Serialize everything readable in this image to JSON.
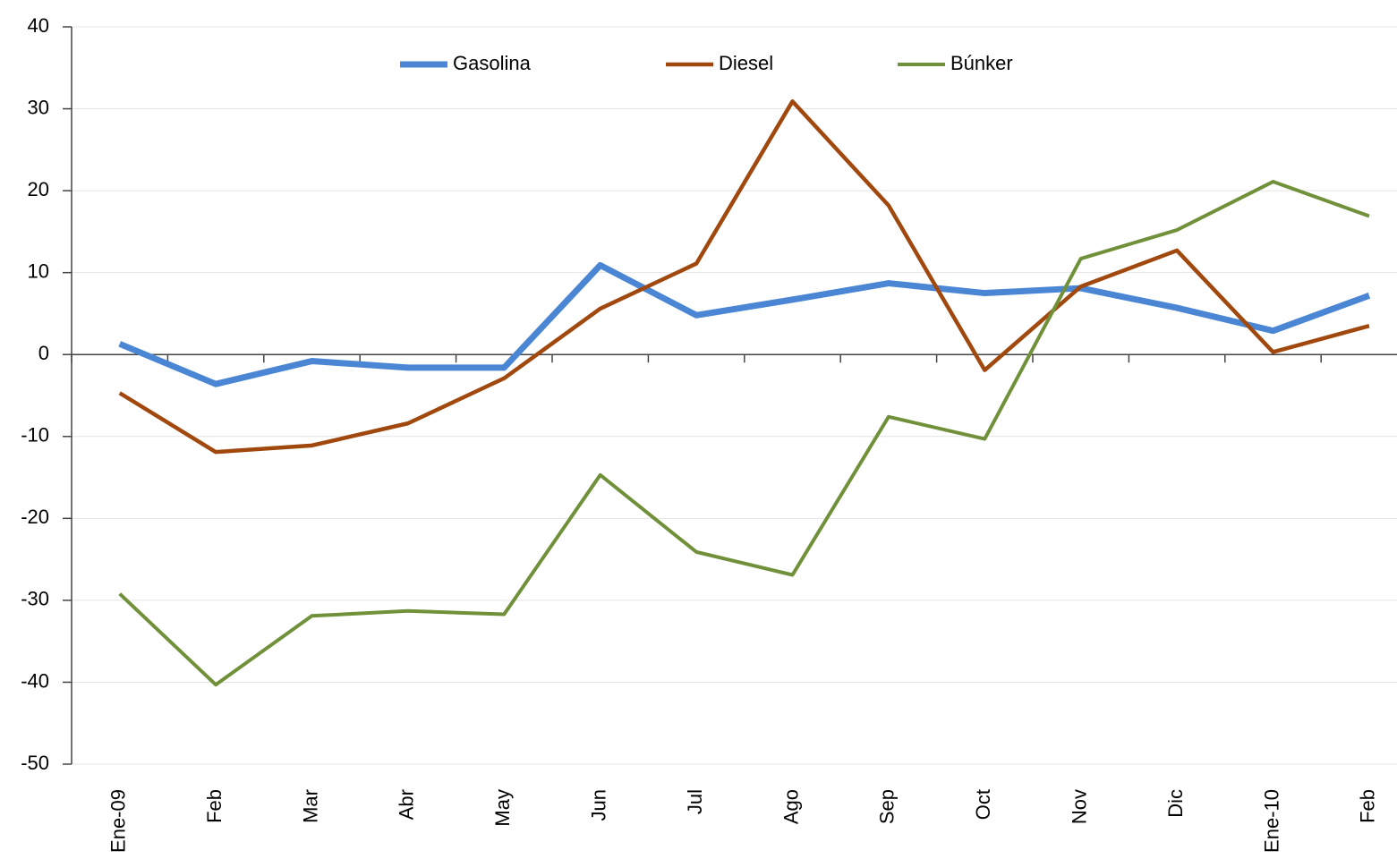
{
  "chart_data": {
    "type": "line",
    "categories": [
      "Ene-09",
      "Feb",
      "Mar",
      "Abr",
      "May",
      "Jun",
      "Jul",
      "Ago",
      "Sep",
      "Oct",
      "Nov",
      "Dic",
      "Ene-10",
      "Feb"
    ],
    "series": [
      {
        "name": "Gasolina",
        "color": "#4a86d4",
        "values": [
          1.3,
          -3.6,
          -0.8,
          -1.6,
          -1.6,
          10.9,
          4.8,
          6.7,
          8.7,
          7.5,
          8.1,
          5.7,
          2.9,
          7.2
        ]
      },
      {
        "name": "Diesel",
        "color": "#a0480e",
        "values": [
          -4.7,
          -11.9,
          -11.1,
          -8.4,
          -2.9,
          5.6,
          11.1,
          30.9,
          18.2,
          -1.9,
          8.3,
          12.7,
          0.3,
          3.5
        ]
      },
      {
        "name": "Búnker",
        "color": "#70903a",
        "values": [
          -29.2,
          -40.3,
          -31.9,
          -31.3,
          -31.7,
          -14.7,
          -24.1,
          -26.9,
          -7.6,
          -10.3,
          11.7,
          15.2,
          21.1,
          16.9
        ]
      }
    ],
    "ylim": [
      -50,
      40
    ],
    "yticks": [
      -50,
      -40,
      -30,
      -20,
      -10,
      0,
      10,
      20,
      30,
      40
    ],
    "grid": true,
    "legend": "top"
  }
}
